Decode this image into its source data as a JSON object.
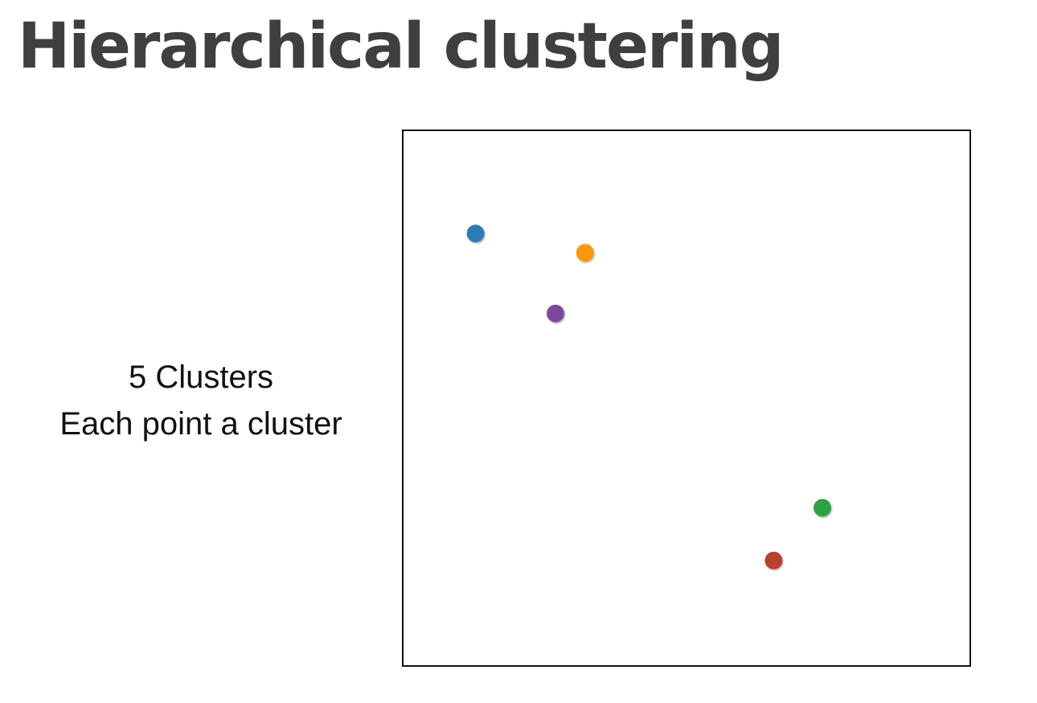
{
  "title": "Hierarchical clustering",
  "caption": {
    "line1": "5 Clusters",
    "line2": "Each point a cluster"
  },
  "points": [
    {
      "name": "blue",
      "color": "#2e7cb2"
    },
    {
      "name": "orange",
      "color": "#ff960f"
    },
    {
      "name": "purple",
      "color": "#7b4a9c"
    },
    {
      "name": "green",
      "color": "#2ea041"
    },
    {
      "name": "red",
      "color": "#b8412f"
    }
  ]
}
